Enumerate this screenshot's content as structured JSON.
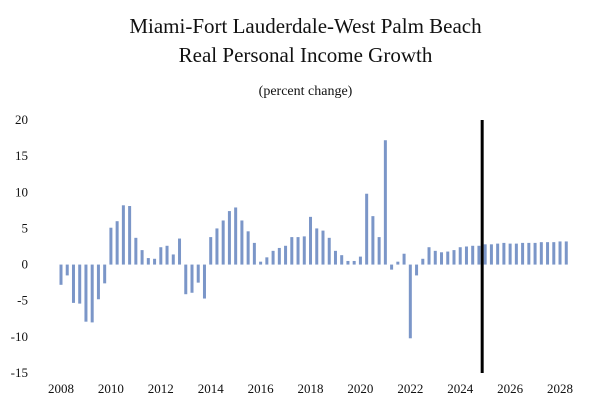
{
  "chart_data": {
    "type": "bar",
    "title": "Miami-Fort Lauderdale-West Palm Beach",
    "title_line2": "Real Personal Income Growth",
    "subtitle": "(percent change)",
    "xlabel": "",
    "ylabel": "",
    "ylim": [
      -15,
      20
    ],
    "yticks": [
      20,
      15,
      10,
      5,
      0,
      -5,
      -10,
      -15
    ],
    "yticks_text": [
      "20",
      "15",
      "10",
      "5",
      "0",
      "-5",
      "-10",
      "-15"
    ],
    "xlim": [
      2008,
      2028.6
    ],
    "xticks": [
      "2008",
      "2010",
      "2012",
      "2014",
      "2016",
      "2018",
      "2020",
      "2022",
      "2024",
      "2026",
      "2028"
    ],
    "bar_color": "#7b96c8",
    "forecast_line_color": "#000000",
    "forecast_start": 2025.0,
    "grid": false,
    "legend": "none",
    "x": [
      2008.0,
      2008.25,
      2008.5,
      2008.75,
      2009.0,
      2009.25,
      2009.5,
      2009.75,
      2010.0,
      2010.25,
      2010.5,
      2010.75,
      2011.0,
      2011.25,
      2011.5,
      2011.75,
      2012.0,
      2012.25,
      2012.5,
      2012.75,
      2013.0,
      2013.25,
      2013.5,
      2013.75,
      2014.0,
      2014.25,
      2014.5,
      2014.75,
      2015.0,
      2015.25,
      2015.5,
      2015.75,
      2016.0,
      2016.25,
      2016.5,
      2016.75,
      2017.0,
      2017.25,
      2017.5,
      2017.75,
      2018.0,
      2018.25,
      2018.5,
      2018.75,
      2019.0,
      2019.25,
      2019.5,
      2019.75,
      2020.0,
      2020.25,
      2020.5,
      2020.75,
      2021.0,
      2021.25,
      2021.5,
      2021.75,
      2022.0,
      2022.25,
      2022.5,
      2022.75,
      2023.0,
      2023.25,
      2023.5,
      2023.75,
      2024.0,
      2024.25,
      2024.5,
      2024.75,
      2025.0,
      2025.25,
      2025.5,
      2025.75,
      2026.0,
      2026.25,
      2026.5,
      2026.75,
      2027.0,
      2027.25,
      2027.5,
      2027.75,
      2028.0,
      2028.25
    ],
    "values": [
      -2.8,
      -1.5,
      -5.3,
      -5.4,
      -7.9,
      -8.0,
      -4.8,
      -2.6,
      5.1,
      6.0,
      8.2,
      8.1,
      3.7,
      2.0,
      0.9,
      0.8,
      2.4,
      2.6,
      1.4,
      3.6,
      -4.1,
      -3.9,
      -2.5,
      -4.7,
      3.8,
      5.0,
      6.1,
      7.4,
      7.9,
      6.1,
      4.6,
      3.0,
      0.4,
      1.0,
      1.9,
      2.3,
      2.6,
      3.8,
      3.8,
      3.9,
      6.6,
      5.0,
      4.7,
      3.7,
      1.9,
      1.3,
      0.5,
      0.5,
      1.1,
      9.8,
      6.7,
      3.8,
      17.2,
      -0.7,
      0.4,
      1.5,
      -10.2,
      -1.5,
      0.8,
      2.4,
      1.9,
      1.7,
      1.8,
      2.0,
      2.4,
      2.5,
      2.6,
      2.6,
      2.8,
      2.8,
      2.9,
      3.0,
      2.9,
      2.9,
      3.0,
      3.0,
      3.0,
      3.1,
      3.1,
      3.1,
      3.2,
      3.2
    ]
  }
}
